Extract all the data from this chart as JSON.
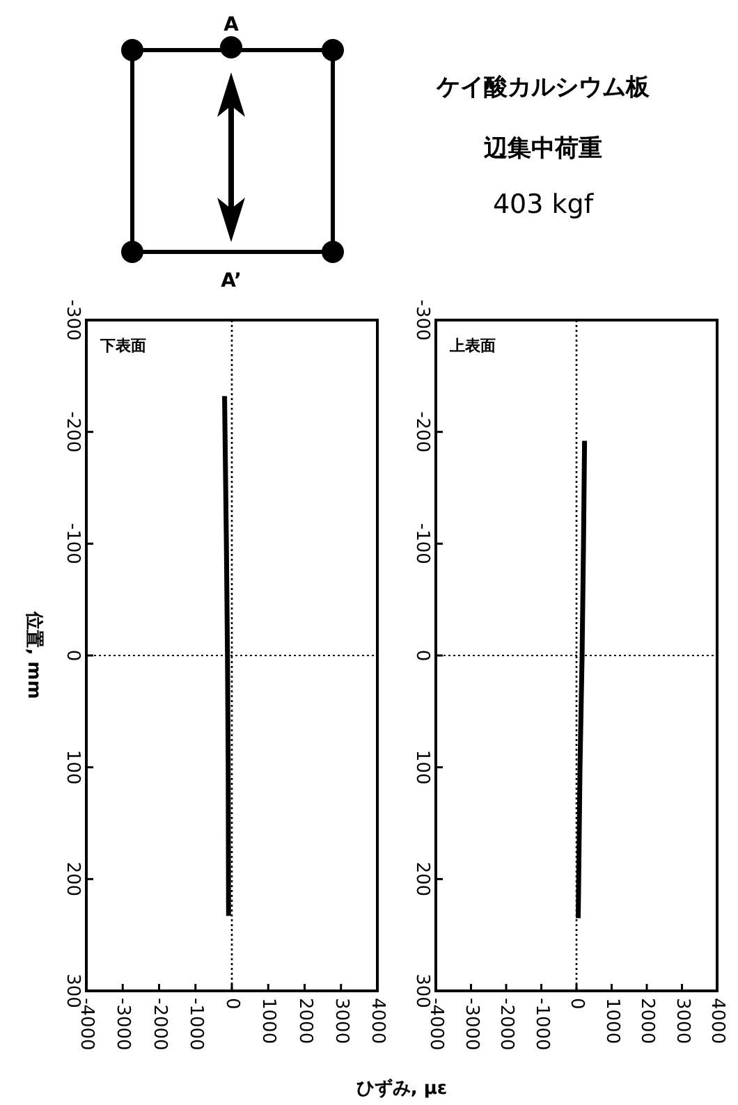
{
  "chart_data": [
    {
      "type": "line",
      "title": "下表面",
      "xlabel": "ひずみ, με",
      "ylabel": "位置, mm",
      "annotations": [
        "ケイ酸カルシウム板",
        "辺集中荷重",
        "403 kgf",
        "A",
        "A’"
      ],
      "series": [
        {
          "color": "#000000",
          "x": [
            -200,
            -150,
            -120,
            -100,
            -90
          ],
          "values": [
            -232,
            -100,
            0,
            100,
            233
          ]
        }
      ],
      "xlim": [
        -4000,
        4000
      ],
      "xticks": [
        -4000,
        -3000,
        -2000,
        -1000,
        0,
        1000,
        2000,
        3000,
        4000
      ],
      "ylim": [
        300,
        -300
      ],
      "yticks": [
        -300,
        -200,
        -100,
        0,
        100,
        200,
        300
      ],
      "ref_lines": [
        {
          "axis": "x",
          "value": 0,
          "line_style": "dotted"
        },
        {
          "axis": "y",
          "value": 0,
          "line_style": "dotted"
        }
      ],
      "grid": false,
      "marker": "none",
      "line_style": "solid"
    },
    {
      "type": "line",
      "title": "上表面",
      "series": [
        {
          "color": "#000000",
          "x": [
            230,
            200,
            160,
            100,
            50
          ],
          "values": [
            -192,
            -100,
            0,
            100,
            235
          ]
        }
      ],
      "xlim": [
        -4000,
        4000
      ],
      "xticks": [
        -4000,
        -3000,
        -2000,
        -1000,
        0,
        1000,
        2000,
        3000,
        4000
      ],
      "ylim": [
        300,
        -300
      ],
      "yticks": [
        -300,
        -200,
        -100,
        0,
        100,
        200,
        300
      ],
      "ref_lines": [
        {
          "axis": "x",
          "value": 0,
          "line_style": "dotted"
        },
        {
          "axis": "y",
          "value": 0,
          "line_style": "dotted"
        }
      ],
      "grid": false,
      "marker": "none",
      "line_style": "solid"
    }
  ]
}
